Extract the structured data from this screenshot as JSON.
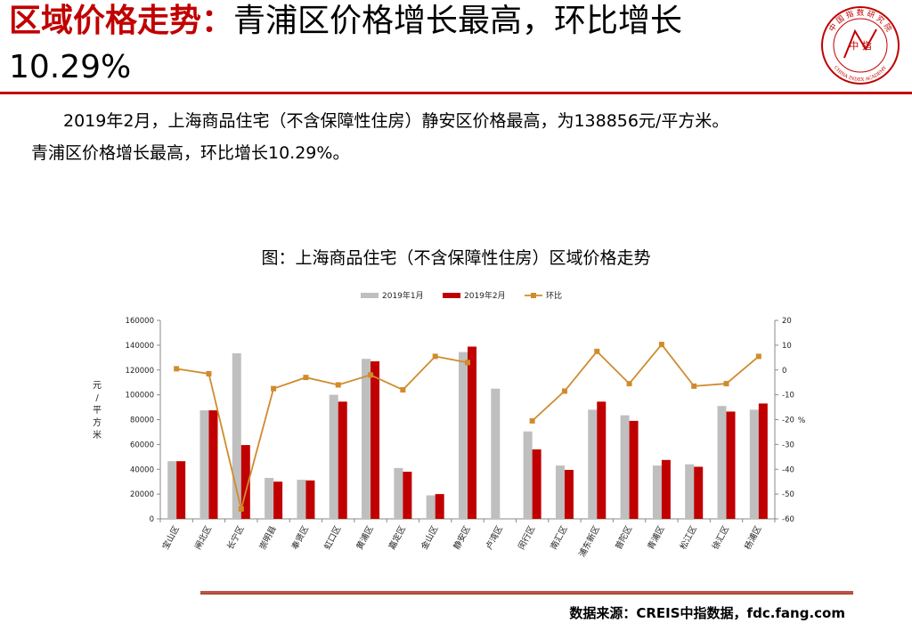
{
  "slide": {
    "title_highlight": "区域价格走势：",
    "title_rest": "青浦区价格增长最高，环比增长",
    "title_line2": "10.29%",
    "paragraph_line1": "2019年2月，上海商品住宅（不含保障性住房）静安区价格最高，为138856元/平方米。",
    "paragraph_line2": "青浦区价格增长最高，环比增长10.29%。",
    "source": "数据来源：CREIS中指数据，fdc.fang.com"
  },
  "logo": {
    "arc_text": "中 国 指 数 研 究 院",
    "center_text": "中 指",
    "english": "CHINA INDEX ACADEMY",
    "color": "#c00000"
  },
  "chart_data": {
    "type": "bar",
    "title": "图：上海商品住宅（不含保障性住房）区域价格走势",
    "categories": [
      "宝山区",
      "闸北区",
      "长宁区",
      "崇明县",
      "奉贤区",
      "虹口区",
      "黄浦区",
      "嘉定区",
      "金山区",
      "静安区",
      "卢湾区",
      "闵行区",
      "南汇区",
      "浦东新区",
      "普陀区",
      "青浦区",
      "松江区",
      "徐汇区",
      "杨浦区"
    ],
    "series": [
      {
        "name": "2019年1月",
        "kind": "bar",
        "axis": "left",
        "color": "#bfbfbf",
        "values": [
          46500,
          87500,
          133500,
          33000,
          31500,
          100000,
          129000,
          41000,
          19000,
          134500,
          105000,
          70500,
          43000,
          88000,
          83500,
          43000,
          44000,
          91000,
          88000
        ]
      },
      {
        "name": "2019年2月",
        "kind": "bar",
        "axis": "left",
        "color": "#c00000",
        "values": [
          46500,
          87500,
          59500,
          30000,
          31000,
          94500,
          127000,
          38000,
          20000,
          138856,
          null,
          56000,
          39500,
          94500,
          79000,
          47500,
          42000,
          86500,
          93000
        ]
      },
      {
        "name": "环比",
        "kind": "line",
        "axis": "right",
        "color": "#d08b2c",
        "values": [
          0.5,
          -1.5,
          -56,
          -7.5,
          -3,
          -6,
          -2,
          -8,
          5.5,
          3,
          null,
          -20.5,
          -8.5,
          7.5,
          -5.5,
          10.29,
          -6.5,
          -5.5,
          5.5
        ]
      }
    ],
    "ylabel_left": "元/平方米",
    "ylabel_right": "%",
    "ylim_left": [
      0,
      160000
    ],
    "yticks_left": [
      0,
      20000,
      40000,
      60000,
      80000,
      100000,
      120000,
      140000,
      160000
    ],
    "ylim_right": [
      -60,
      20
    ],
    "yticks_right": [
      -60,
      -50,
      -40,
      -30,
      -20,
      -10,
      0,
      10,
      20
    ],
    "legend_position": "top-center",
    "grid": false
  }
}
